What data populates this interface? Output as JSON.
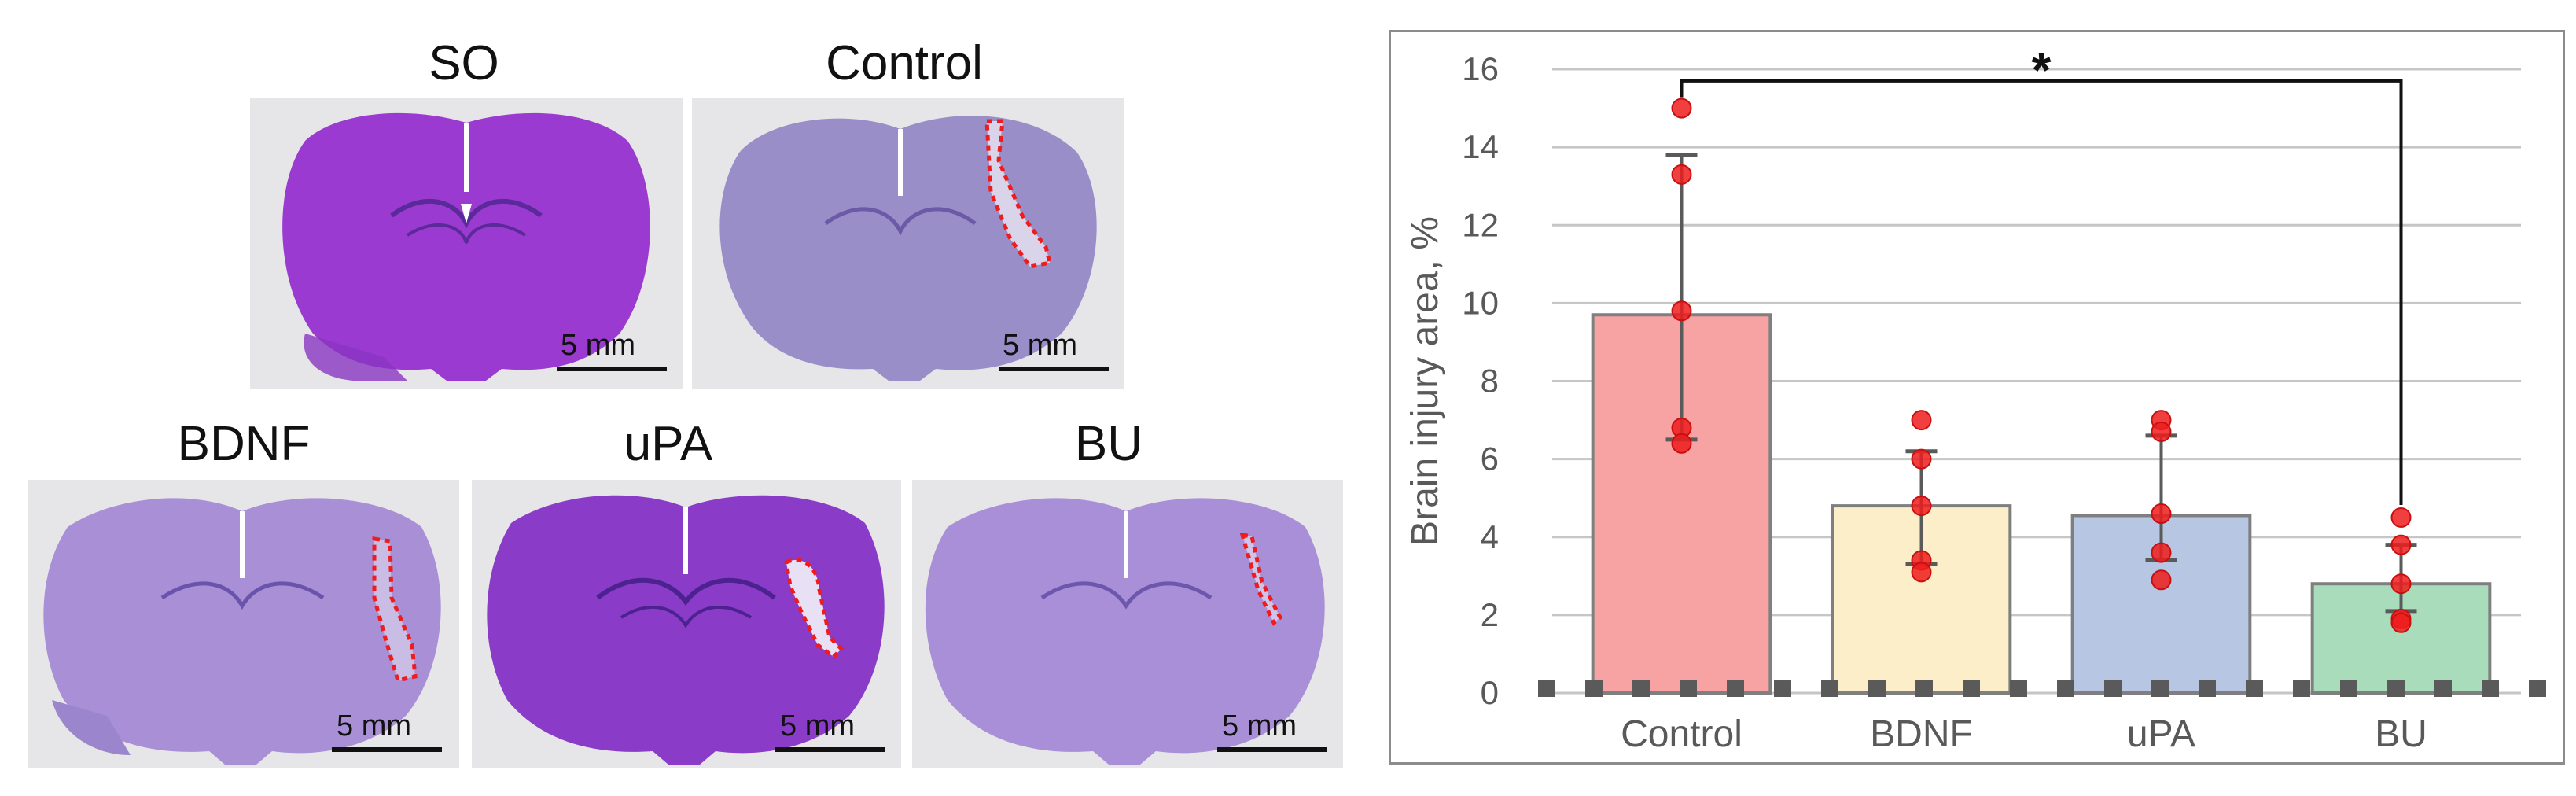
{
  "figure": {
    "panels": [
      {
        "id": "so",
        "title": "SO",
        "scale_label": "5 mm"
      },
      {
        "id": "control",
        "title": "Control",
        "scale_label": "5 mm"
      },
      {
        "id": "bdnf",
        "title": "BDNF",
        "scale_label": "5 mm"
      },
      {
        "id": "upa",
        "title": "uPA",
        "scale_label": "5 mm"
      },
      {
        "id": "bu",
        "title": "BU",
        "scale_label": "5 mm"
      }
    ]
  },
  "chart_data": {
    "type": "bar",
    "ylabel": "Brain injury area, %",
    "xlabel": "",
    "ylim": [
      0,
      16
    ],
    "yticks": [
      0,
      2,
      4,
      6,
      8,
      10,
      12,
      14,
      16
    ],
    "grid": true,
    "categories": [
      "Control",
      "BDNF",
      "uPA",
      "BU"
    ],
    "values": [
      9.7,
      4.8,
      4.55,
      2.8
    ],
    "error_upper": [
      13.8,
      6.2,
      6.6,
      3.8
    ],
    "error_lower": [
      6.5,
      3.3,
      3.4,
      2.1
    ],
    "points": [
      [
        15.0,
        13.3,
        9.8,
        6.8,
        6.4
      ],
      [
        7.0,
        6.0,
        4.8,
        3.4,
        3.1
      ],
      [
        7.0,
        6.7,
        4.6,
        3.6,
        2.9
      ],
      [
        4.5,
        3.8,
        2.8,
        1.9,
        1.8
      ]
    ],
    "colors": {
      "bars": [
        "#f7a3a3",
        "#fbeec8",
        "#b7c7e3",
        "#a9dcba"
      ],
      "points": "#ee1c1c",
      "bar_edge": "#7f7f7f",
      "grid": "#c6c6c6",
      "error": "#5a5a5a",
      "baseline_dash": "#5a5a5a"
    },
    "significance": {
      "from": "Control",
      "to": "BU",
      "label": "*"
    }
  }
}
